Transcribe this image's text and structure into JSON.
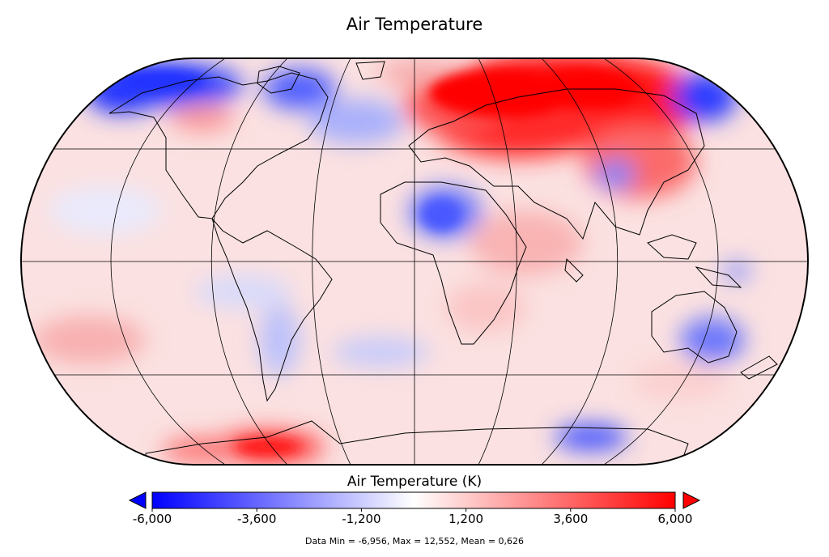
{
  "title": "Air Temperature",
  "colorbar": {
    "label": "Air Temperature (K)",
    "min": -6000,
    "max": 6000,
    "ticks": [
      "-6,000",
      "-3,600",
      "-1,200",
      "1,200",
      "3,600",
      "6,000"
    ],
    "colors": [
      "#0000ff",
      "#ffffff",
      "#ff0000"
    ],
    "extend_low_color": "#0000ff",
    "extend_high_color": "#ff0000"
  },
  "stats": "Data Min = -6,956, Max = 12,552, Mean = 0,626",
  "map": {
    "projection": "Robinson",
    "gridlines": true,
    "anomalies": [
      {
        "region": "northern-eurasia",
        "sign": "warm",
        "value": 6000
      },
      {
        "region": "antarctic-peninsula",
        "sign": "warm",
        "value": 5000
      },
      {
        "region": "sahara",
        "sign": "cold",
        "value": -4000
      },
      {
        "region": "northern-canada",
        "sign": "cold",
        "value": -5500
      },
      {
        "region": "bering",
        "sign": "cold",
        "value": -5000
      },
      {
        "region": "australia",
        "sign": "cold",
        "value": -3500
      },
      {
        "region": "east-antarctica",
        "sign": "cold",
        "value": -4500
      },
      {
        "region": "south-america",
        "sign": "cold",
        "value": -2500
      }
    ]
  }
}
